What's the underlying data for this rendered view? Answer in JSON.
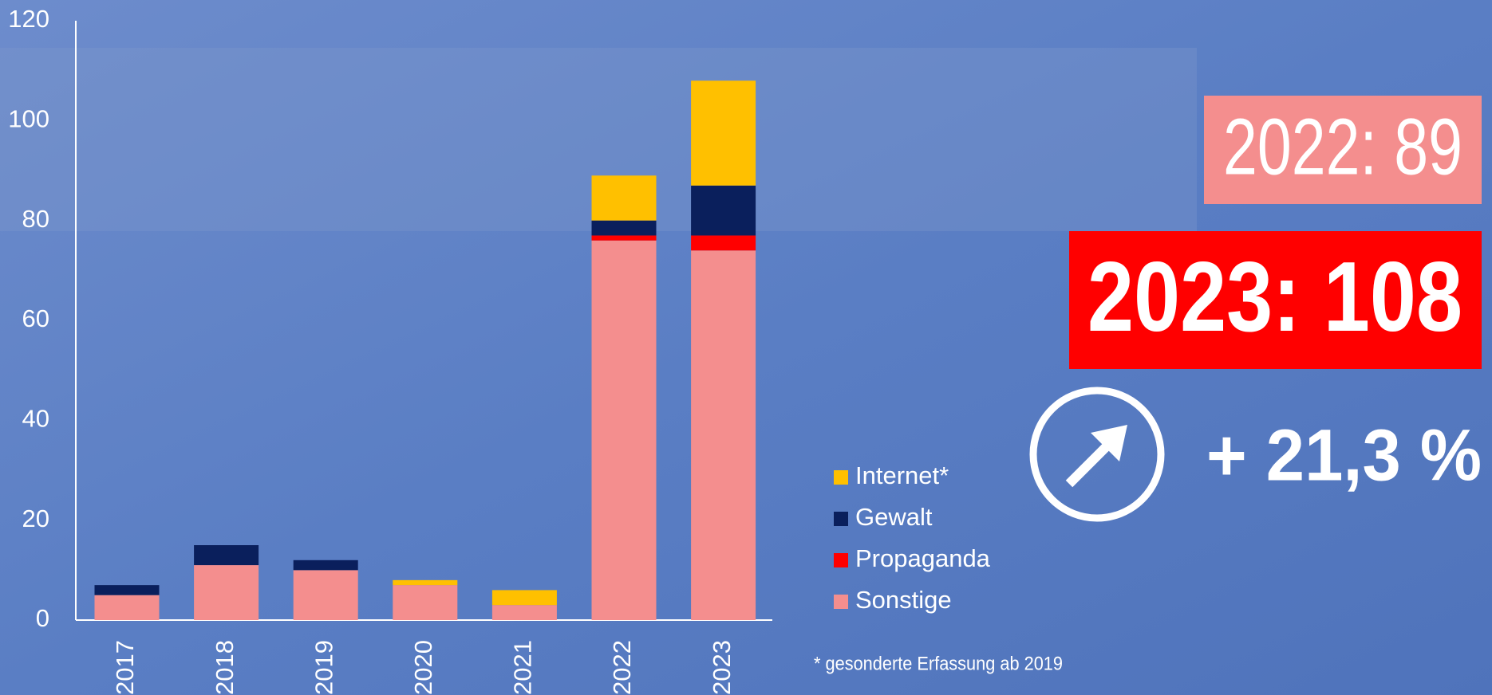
{
  "chart_data": {
    "type": "stacked_bar",
    "categories": [
      "2017",
      "2018",
      "2019",
      "2020",
      "2021",
      "2022",
      "2023"
    ],
    "series": [
      {
        "name": "Sonstige",
        "color": "#f48e8e",
        "values": [
          5,
          11,
          10,
          7,
          3,
          76,
          74
        ]
      },
      {
        "name": "Propaganda",
        "color": "#ff0000",
        "values": [
          0,
          0,
          0,
          0,
          0,
          1,
          3
        ]
      },
      {
        "name": "Gewalt",
        "color": "#0a1f5c",
        "values": [
          2,
          4,
          2,
          0,
          0,
          3,
          10
        ]
      },
      {
        "name": "Internet*",
        "color": "#ffc000",
        "values": [
          0,
          0,
          0,
          1,
          3,
          9,
          21
        ]
      }
    ],
    "ylim": [
      0,
      120
    ],
    "yticks": [
      0,
      20,
      40,
      60,
      80,
      100,
      120
    ],
    "grid": false,
    "legend": "right",
    "annotations": {
      "prev": "2022: 89",
      "current": "2023: 108",
      "change": "+ 21,3 %",
      "footnote": "* gesonderte Erfassung ab 2019"
    }
  }
}
